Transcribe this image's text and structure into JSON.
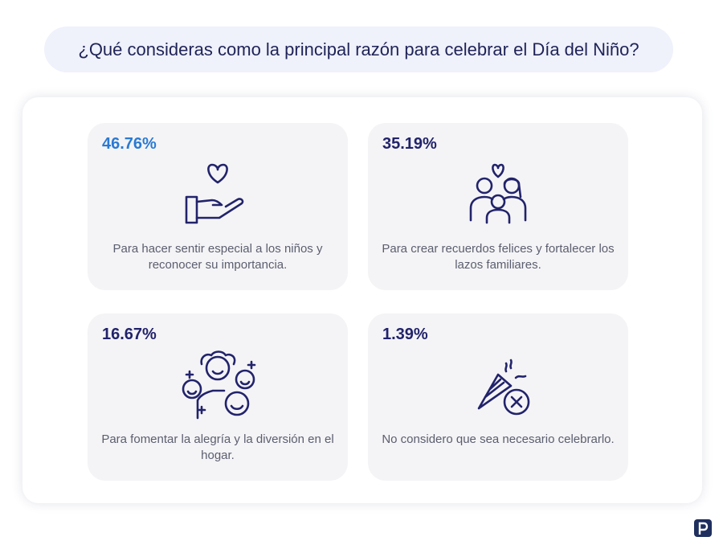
{
  "question": "¿Qué consideras como la principal razón para celebrar el Día del Niño?",
  "colors": {
    "highlight": "#2a7ad3",
    "dark": "#22236b",
    "card_bg": "#f4f4f6"
  },
  "chart_data": {
    "type": "table",
    "title": "¿Qué consideras como la principal razón para celebrar el Día del Niño?",
    "categories": [
      "Para hacer sentir especial a los niños y reconocer su importancia.",
      "Para crear recuerdos felices y fortalecer los lazos familiares.",
      "Para fomentar la alegría y la diversión en el hogar.",
      "No considero que sea necesario celebrarlo."
    ],
    "values": [
      46.76,
      35.19,
      16.67,
      1.39
    ],
    "unit": "%"
  },
  "cards": [
    {
      "percent": "46.76%",
      "text": "Para hacer sentir especial a los niños y reconocer su importancia.",
      "icon": "hand-heart-icon"
    },
    {
      "percent": "35.19%",
      "text": "Para crear recuerdos felices y fortalecer los lazos familiares.",
      "icon": "family-heart-icon"
    },
    {
      "percent": "16.67%",
      "text": "Para fomentar la alegría y la diversión en el hogar.",
      "icon": "happy-faces-icon"
    },
    {
      "percent": "1.39%",
      "text": "No considero que sea necesario celebrarlo.",
      "icon": "party-popper-cross-icon"
    }
  ]
}
